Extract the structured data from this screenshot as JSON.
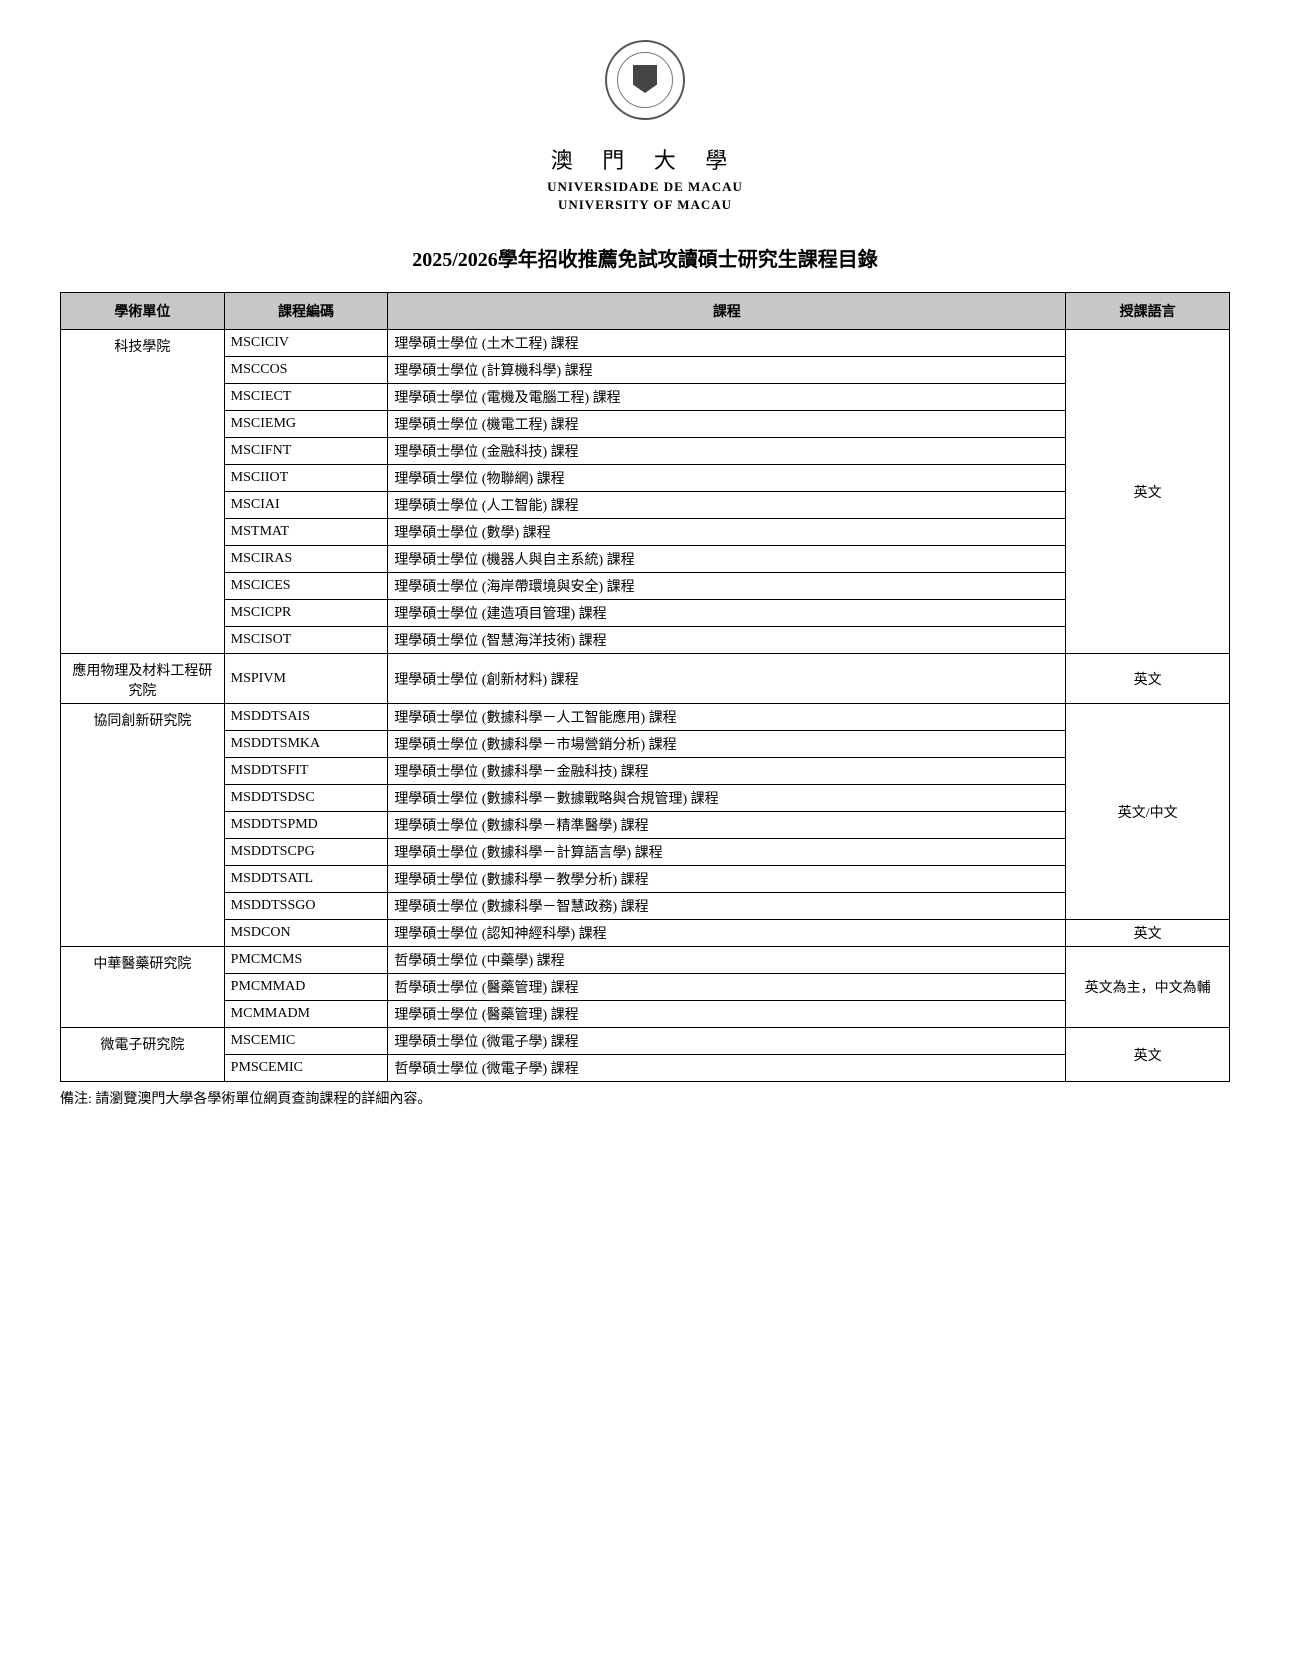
{
  "header": {
    "uni_zh": "澳 門 大 學",
    "uni_pt": "UNIVERSIDADE DE MACAU",
    "uni_en": "UNIVERSITY OF MACAU"
  },
  "title": "2025/2026學年招收推薦免試攻讀碩士研究生課程目錄",
  "columns": {
    "unit": "學術單位",
    "code": "課程編碼",
    "course": "課程",
    "lang": "授課語言"
  },
  "groups": [
    {
      "unit": "科技學院",
      "lang": "英文",
      "lang_span": 12,
      "rows": [
        {
          "code": "MSCICIV",
          "course": "理學碩士學位 (土木工程) 課程"
        },
        {
          "code": "MSCCOS",
          "course": "理學碩士學位 (計算機科學) 課程"
        },
        {
          "code": "MSCIECT",
          "course": "理學碩士學位 (電機及電腦工程) 課程"
        },
        {
          "code": "MSCIEMG",
          "course": "理學碩士學位 (機電工程) 課程"
        },
        {
          "code": "MSCIFNT",
          "course": "理學碩士學位 (金融科技) 課程"
        },
        {
          "code": "MSCIIOT",
          "course": "理學碩士學位 (物聯網) 課程"
        },
        {
          "code": "MSCIAI",
          "course": "理學碩士學位 (人工智能) 課程"
        },
        {
          "code": "MSTMAT",
          "course": "理學碩士學位 (數學) 課程"
        },
        {
          "code": "MSCIRAS",
          "course": "理學碩士學位 (機器人與自主系統) 課程"
        },
        {
          "code": "MSCICES",
          "course": "理學碩士學位 (海岸帶環境與安全) 課程"
        },
        {
          "code": "MSCICPR",
          "course": "理學碩士學位 (建造項目管理) 課程"
        },
        {
          "code": "MSCISOT",
          "course": "理學碩士學位 (智慧海洋技術) 課程"
        }
      ]
    },
    {
      "unit": "應用物理及材料工程研究院",
      "lang": "英文",
      "lang_span": 1,
      "rows": [
        {
          "code": "MSPIVM",
          "course": "理學碩士學位 (創新材料) 課程"
        }
      ]
    },
    {
      "unit": "協同創新研究院",
      "lang_blocks": [
        {
          "lang": "英文/中文",
          "span": 8
        },
        {
          "lang": "英文",
          "span": 1
        }
      ],
      "rows": [
        {
          "code": "MSDDTSAIS",
          "course": "理學碩士學位 (數據科學－人工智能應用) 課程"
        },
        {
          "code": "MSDDTSMKA",
          "course": "理學碩士學位 (數據科學－市場營銷分析) 課程"
        },
        {
          "code": "MSDDTSFIT",
          "course": "理學碩士學位 (數據科學－金融科技) 課程"
        },
        {
          "code": "MSDDTSDSC",
          "course": "理學碩士學位 (數據科學－數據戰略與合規管理) 課程"
        },
        {
          "code": "MSDDTSPMD",
          "course": "理學碩士學位 (數據科學－精準醫學) 課程"
        },
        {
          "code": "MSDDTSCPG",
          "course": "理學碩士學位 (數據科學－計算語言學) 課程"
        },
        {
          "code": "MSDDTSATL",
          "course": "理學碩士學位 (數據科學－教學分析) 課程"
        },
        {
          "code": "MSDDTSSGO",
          "course": "理學碩士學位 (數據科學－智慧政務) 課程"
        },
        {
          "code": "MSDCON",
          "course": "理學碩士學位 (認知神經科學) 課程"
        }
      ]
    },
    {
      "unit": "中華醫藥研究院",
      "lang": "英文為主，中文為輔",
      "lang_span": 3,
      "rows": [
        {
          "code": "PMCMCMS",
          "course": "哲學碩士學位 (中藥學) 課程"
        },
        {
          "code": "PMCMMAD",
          "course": "哲學碩士學位 (醫藥管理) 課程"
        },
        {
          "code": "MCMMADM",
          "course": "理學碩士學位 (醫藥管理) 課程"
        }
      ]
    },
    {
      "unit": "微電子研究院",
      "lang": "英文",
      "lang_span": 2,
      "rows": [
        {
          "code": "MSCEMIC",
          "course": "理學碩士學位 (微電子學) 課程"
        },
        {
          "code": "PMSCEMIC",
          "course": "哲學碩士學位 (微電子學) 課程"
        }
      ]
    }
  ],
  "footnote": "備注: 請瀏覽澳門大學各學術單位網頁查詢課程的詳細內容。"
}
